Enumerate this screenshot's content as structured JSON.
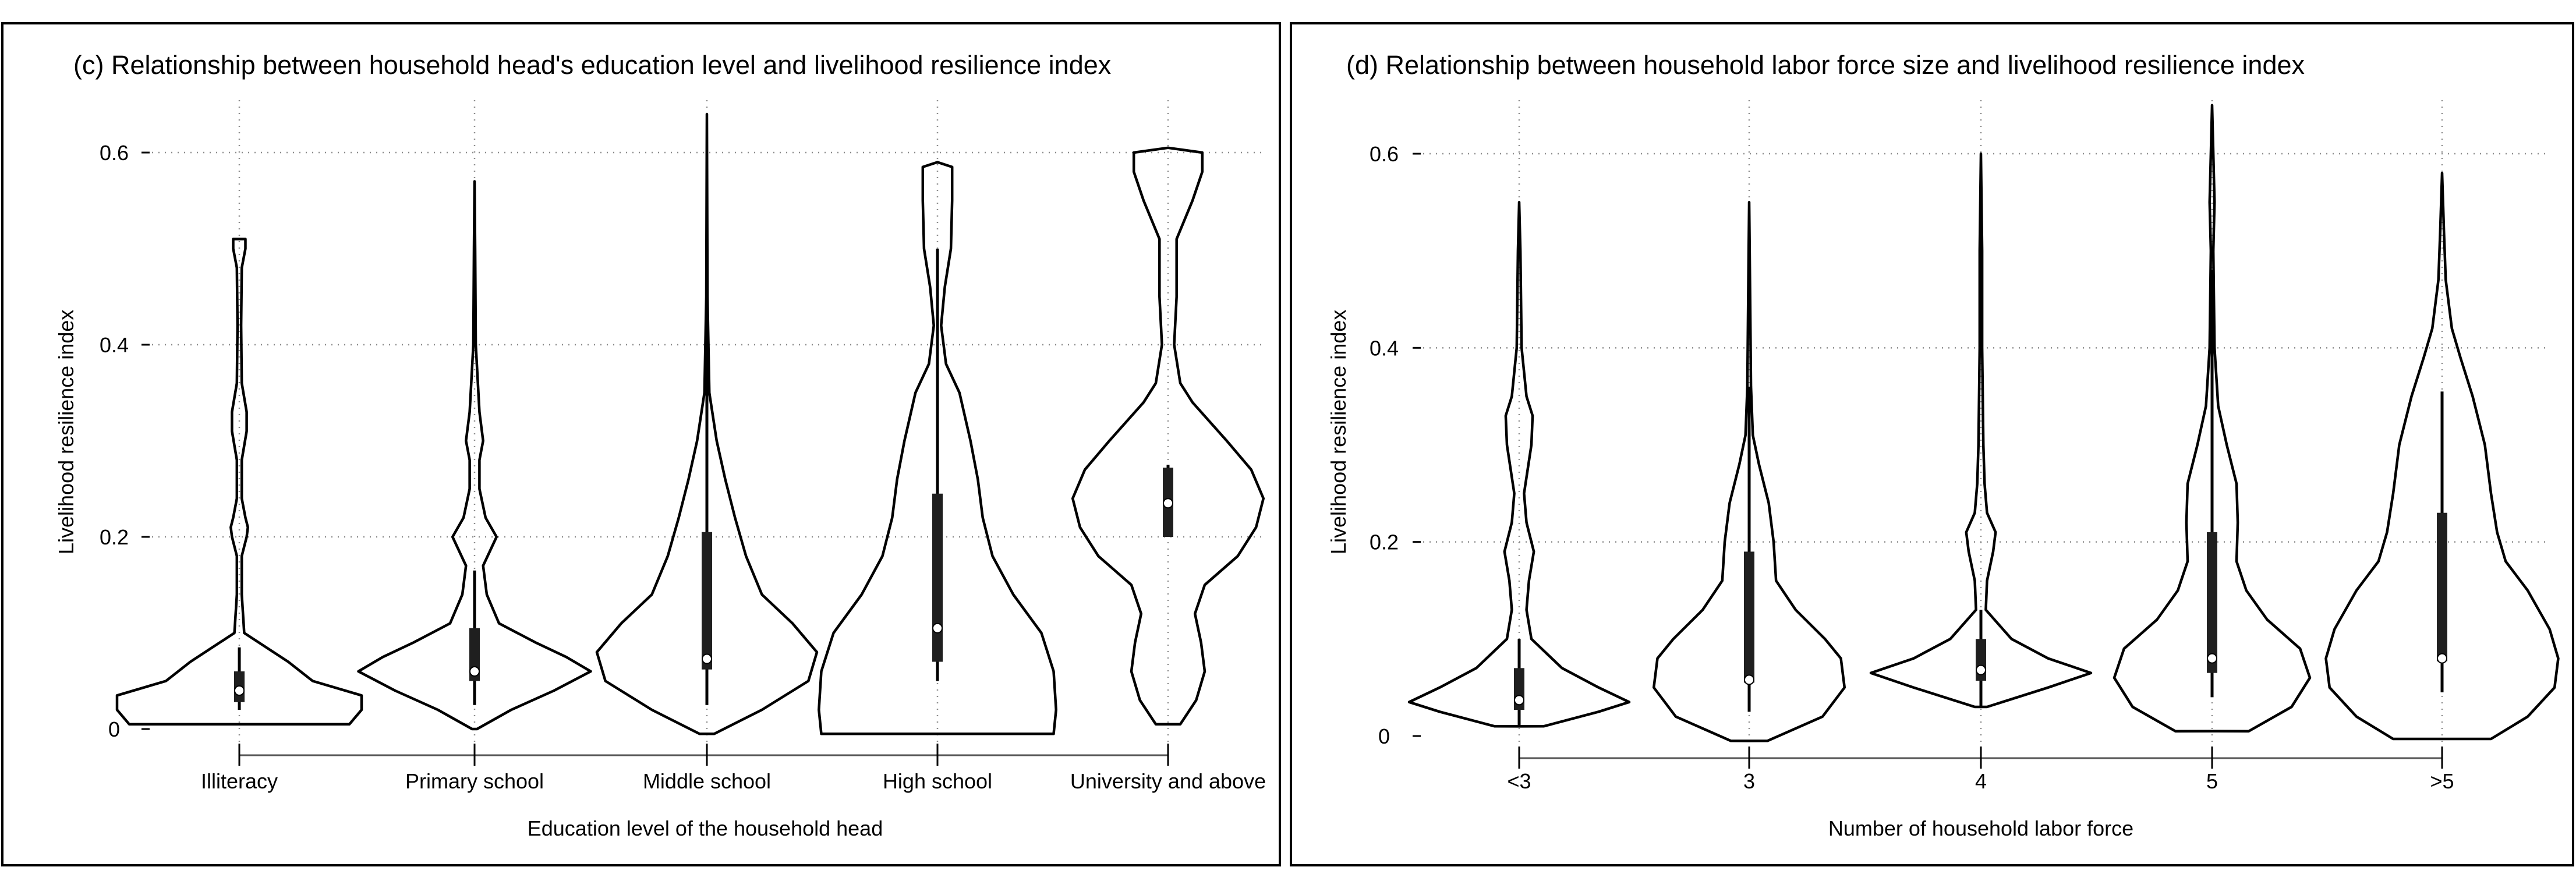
{
  "chart_data": [
    {
      "type": "violin",
      "title": "(c) Relationship between household head's education level and livelihood resilience index",
      "xlabel": "Education level of the household head",
      "ylabel": "Livelihood resilience index",
      "ylim": [
        0,
        0.6
      ],
      "yticks": [
        0,
        0.2,
        0.4,
        0.6
      ],
      "ytick_labels": [
        "0",
        "0.2",
        "0.4",
        "0.6"
      ],
      "grid": true,
      "categories": [
        "Illiteracy",
        "Primary school",
        "Middle school",
        "High school",
        "University and above"
      ],
      "groups": [
        {
          "name": "Illiteracy",
          "min": 0.005,
          "max": 0.51,
          "whisker_low": 0.02,
          "whisker_high": 0.085,
          "q1": 0.028,
          "median": 0.04,
          "q3": 0.06,
          "density": [
            [
              0.005,
              0.9
            ],
            [
              0.02,
              1.0
            ],
            [
              0.035,
              1.0
            ],
            [
              0.05,
              0.6
            ],
            [
              0.07,
              0.4
            ],
            [
              0.1,
              0.04
            ],
            [
              0.14,
              0.02
            ],
            [
              0.18,
              0.02
            ],
            [
              0.2,
              0.06
            ],
            [
              0.21,
              0.07
            ],
            [
              0.22,
              0.05
            ],
            [
              0.24,
              0.02
            ],
            [
              0.28,
              0.02
            ],
            [
              0.31,
              0.06
            ],
            [
              0.33,
              0.06
            ],
            [
              0.36,
              0.02
            ],
            [
              0.42,
              0.015
            ],
            [
              0.48,
              0.02
            ],
            [
              0.5,
              0.05
            ],
            [
              0.51,
              0.05
            ]
          ]
        },
        {
          "name": "Primary school",
          "min": 0.0,
          "max": 0.57,
          "whisker_low": 0.025,
          "whisker_high": 0.165,
          "q1": 0.05,
          "median": 0.06,
          "q3": 0.105,
          "density": [
            [
              0.0,
              0.02
            ],
            [
              0.02,
              0.3
            ],
            [
              0.04,
              0.65
            ],
            [
              0.06,
              0.95
            ],
            [
              0.075,
              0.75
            ],
            [
              0.09,
              0.5
            ],
            [
              0.11,
              0.2
            ],
            [
              0.14,
              0.1
            ],
            [
              0.17,
              0.07
            ],
            [
              0.2,
              0.18
            ],
            [
              0.22,
              0.09
            ],
            [
              0.25,
              0.04
            ],
            [
              0.28,
              0.04
            ],
            [
              0.3,
              0.07
            ],
            [
              0.33,
              0.04
            ],
            [
              0.4,
              0.01
            ],
            [
              0.5,
              0.005
            ],
            [
              0.57,
              0.0
            ]
          ]
        },
        {
          "name": "Middle school",
          "min": -0.005,
          "max": 0.64,
          "whisker_low": 0.025,
          "whisker_high": 0.52,
          "q1": 0.062,
          "median": 0.073,
          "q3": 0.205,
          "density": [
            [
              -0.005,
              0.06
            ],
            [
              0.02,
              0.45
            ],
            [
              0.05,
              0.83
            ],
            [
              0.08,
              0.9
            ],
            [
              0.11,
              0.7
            ],
            [
              0.14,
              0.45
            ],
            [
              0.18,
              0.32
            ],
            [
              0.22,
              0.23
            ],
            [
              0.26,
              0.15
            ],
            [
              0.3,
              0.08
            ],
            [
              0.35,
              0.02
            ],
            [
              0.45,
              0.005
            ],
            [
              0.64,
              0.0
            ]
          ]
        },
        {
          "name": "High school",
          "min": -0.005,
          "max": 0.59,
          "whisker_low": 0.05,
          "whisker_high": 0.5,
          "q1": 0.07,
          "median": 0.105,
          "q3": 0.245,
          "density": [
            [
              -0.005,
              0.95
            ],
            [
              0.02,
              0.97
            ],
            [
              0.06,
              0.95
            ],
            [
              0.1,
              0.85
            ],
            [
              0.14,
              0.62
            ],
            [
              0.18,
              0.45
            ],
            [
              0.22,
              0.37
            ],
            [
              0.26,
              0.33
            ],
            [
              0.3,
              0.27
            ],
            [
              0.35,
              0.18
            ],
            [
              0.38,
              0.07
            ],
            [
              0.42,
              0.03
            ],
            [
              0.46,
              0.06
            ],
            [
              0.5,
              0.11
            ],
            [
              0.55,
              0.12
            ],
            [
              0.585,
              0.12
            ],
            [
              0.59,
              0.0
            ]
          ]
        },
        {
          "name": "University and above",
          "min": 0.005,
          "max": 0.605,
          "whisker_low": 0.2,
          "whisker_high": 0.275,
          "q1": 0.2,
          "median": 0.235,
          "q3": 0.272,
          "density": [
            [
              0.005,
              0.1
            ],
            [
              0.03,
              0.23
            ],
            [
              0.06,
              0.3
            ],
            [
              0.09,
              0.27
            ],
            [
              0.12,
              0.22
            ],
            [
              0.15,
              0.3
            ],
            [
              0.18,
              0.57
            ],
            [
              0.21,
              0.72
            ],
            [
              0.24,
              0.78
            ],
            [
              0.27,
              0.68
            ],
            [
              0.3,
              0.48
            ],
            [
              0.34,
              0.2
            ],
            [
              0.36,
              0.1
            ],
            [
              0.4,
              0.05
            ],
            [
              0.45,
              0.07
            ],
            [
              0.51,
              0.07
            ],
            [
              0.55,
              0.2
            ],
            [
              0.58,
              0.28
            ],
            [
              0.6,
              0.28
            ],
            [
              0.605,
              0.0
            ]
          ]
        }
      ]
    },
    {
      "type": "violin",
      "title": "(d) Relationship between household labor force size  and livelihood resilience index",
      "xlabel": "Number of household labor force",
      "ylabel": "Livelihood resilience index",
      "ylim": [
        0,
        0.6
      ],
      "yticks": [
        0,
        0.2,
        0.4,
        0.6
      ],
      "ytick_labels": [
        "0",
        "0.2",
        "0.4",
        "0.6"
      ],
      "grid": true,
      "categories": [
        "<3",
        "3",
        "4",
        "5",
        ">5"
      ],
      "groups": [
        {
          "name": "<3",
          "min": 0.01,
          "max": 0.55,
          "whisker_low": 0.01,
          "whisker_high": 0.1,
          "q1": 0.027,
          "median": 0.037,
          "q3": 0.07,
          "density": [
            [
              0.01,
              0.2
            ],
            [
              0.025,
              0.65
            ],
            [
              0.035,
              0.9
            ],
            [
              0.05,
              0.65
            ],
            [
              0.07,
              0.35
            ],
            [
              0.1,
              0.1
            ],
            [
              0.13,
              0.06
            ],
            [
              0.16,
              0.08
            ],
            [
              0.19,
              0.12
            ],
            [
              0.22,
              0.06
            ],
            [
              0.25,
              0.04
            ],
            [
              0.3,
              0.1
            ],
            [
              0.33,
              0.11
            ],
            [
              0.35,
              0.06
            ],
            [
              0.4,
              0.02
            ],
            [
              0.5,
              0.01
            ],
            [
              0.55,
              0.0
            ]
          ]
        },
        {
          "name": "3",
          "min": -0.005,
          "max": 0.55,
          "whisker_low": 0.025,
          "whisker_high": 0.36,
          "q1": 0.055,
          "median": 0.058,
          "q3": 0.19,
          "density": [
            [
              -0.005,
              0.15
            ],
            [
              0.02,
              0.6
            ],
            [
              0.05,
              0.78
            ],
            [
              0.08,
              0.75
            ],
            [
              0.1,
              0.62
            ],
            [
              0.13,
              0.38
            ],
            [
              0.16,
              0.22
            ],
            [
              0.2,
              0.2
            ],
            [
              0.24,
              0.16
            ],
            [
              0.28,
              0.08
            ],
            [
              0.31,
              0.03
            ],
            [
              0.36,
              0.015
            ],
            [
              0.45,
              0.008
            ],
            [
              0.55,
              0.0
            ]
          ]
        },
        {
          "name": "4",
          "min": 0.03,
          "max": 0.6,
          "whisker_low": 0.03,
          "whisker_high": 0.13,
          "q1": 0.057,
          "median": 0.068,
          "q3": 0.1,
          "density": [
            [
              0.03,
              0.05
            ],
            [
              0.05,
              0.55
            ],
            [
              0.065,
              0.9
            ],
            [
              0.08,
              0.55
            ],
            [
              0.1,
              0.25
            ],
            [
              0.13,
              0.04
            ],
            [
              0.16,
              0.05
            ],
            [
              0.19,
              0.1
            ],
            [
              0.21,
              0.12
            ],
            [
              0.23,
              0.05
            ],
            [
              0.26,
              0.03
            ],
            [
              0.3,
              0.02
            ],
            [
              0.4,
              0.01
            ],
            [
              0.5,
              0.01
            ],
            [
              0.6,
              0.0
            ]
          ]
        },
        {
          "name": "5",
          "min": 0.005,
          "max": 0.65,
          "whisker_low": 0.04,
          "whisker_high": 0.48,
          "q1": 0.065,
          "median": 0.08,
          "q3": 0.21,
          "density": [
            [
              0.005,
              0.3
            ],
            [
              0.03,
              0.65
            ],
            [
              0.06,
              0.8
            ],
            [
              0.09,
              0.72
            ],
            [
              0.12,
              0.45
            ],
            [
              0.15,
              0.28
            ],
            [
              0.18,
              0.2
            ],
            [
              0.22,
              0.21
            ],
            [
              0.26,
              0.2
            ],
            [
              0.3,
              0.12
            ],
            [
              0.34,
              0.05
            ],
            [
              0.4,
              0.02
            ],
            [
              0.5,
              0.01
            ],
            [
              0.55,
              0.02
            ],
            [
              0.65,
              0.0
            ]
          ]
        },
        {
          "name": ">5",
          "min": -0.003,
          "max": 0.58,
          "whisker_low": 0.045,
          "whisker_high": 0.355,
          "q1": 0.077,
          "median": 0.08,
          "q3": 0.23,
          "density": [
            [
              -0.003,
              0.4
            ],
            [
              0.02,
              0.7
            ],
            [
              0.05,
              0.92
            ],
            [
              0.08,
              0.95
            ],
            [
              0.11,
              0.88
            ],
            [
              0.15,
              0.7
            ],
            [
              0.18,
              0.52
            ],
            [
              0.21,
              0.45
            ],
            [
              0.25,
              0.4
            ],
            [
              0.3,
              0.35
            ],
            [
              0.35,
              0.25
            ],
            [
              0.39,
              0.15
            ],
            [
              0.42,
              0.08
            ],
            [
              0.47,
              0.03
            ],
            [
              0.52,
              0.015
            ],
            [
              0.58,
              0.0
            ]
          ]
        }
      ]
    }
  ]
}
